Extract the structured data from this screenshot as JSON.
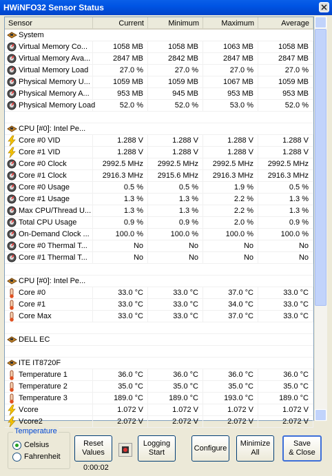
{
  "window": {
    "title": "HWiNFO32 Sensor Status"
  },
  "table": {
    "columns": [
      "Sensor",
      "Current",
      "Minimum",
      "Maximum",
      "Average"
    ],
    "groups": [
      {
        "title": "System",
        "rows": [
          [
            "Virtual Memory Co...",
            "1058 MB",
            "1058 MB",
            "1063 MB",
            "1058 MB"
          ],
          [
            "Virtual Memory Ava...",
            "2847 MB",
            "2842 MB",
            "2847 MB",
            "2847 MB"
          ],
          [
            "Virtual Memory Load",
            "27.0 %",
            "27.0 %",
            "27.0 %",
            "27.0 %"
          ],
          [
            "Physical Memory U...",
            "1059 MB",
            "1059 MB",
            "1067 MB",
            "1059 MB"
          ],
          [
            "Physical Memory A...",
            "953 MB",
            "945 MB",
            "953 MB",
            "953 MB"
          ],
          [
            "Physical Memory Load",
            "52.0 %",
            "52.0 %",
            "53.0 %",
            "52.0 %"
          ]
        ]
      },
      {
        "title": "CPU [#0]: Intel Pe...",
        "rows": [
          [
            "Core #0 VID",
            "1.288 V",
            "1.288 V",
            "1.288 V",
            "1.288 V"
          ],
          [
            "Core #1 VID",
            "1.288 V",
            "1.288 V",
            "1.288 V",
            "1.288 V"
          ],
          [
            "Core #0 Clock",
            "2992.5 MHz",
            "2992.5 MHz",
            "2992.5 MHz",
            "2992.5 MHz"
          ],
          [
            "Core #1 Clock",
            "2916.3 MHz",
            "2915.6 MHz",
            "2916.3 MHz",
            "2916.3 MHz"
          ],
          [
            "Core #0 Usage",
            "0.5 %",
            "0.5 %",
            "1.9 %",
            "0.5 %"
          ],
          [
            "Core #1 Usage",
            "1.3 %",
            "1.3 %",
            "2.2 %",
            "1.3 %"
          ],
          [
            "Max CPU/Thread U...",
            "1.3 %",
            "1.3 %",
            "2.2 %",
            "1.3 %"
          ],
          [
            "Total CPU Usage",
            "0.9 %",
            "0.9 %",
            "2.0 %",
            "0.9 %"
          ],
          [
            "On-Demand Clock ...",
            "100.0 %",
            "100.0 %",
            "100.0 %",
            "100.0 %"
          ],
          [
            "Core #0 Thermal T...",
            "No",
            "No",
            "No",
            "No"
          ],
          [
            "Core #1 Thermal T...",
            "No",
            "No",
            "No",
            "No"
          ]
        ]
      },
      {
        "title": "CPU [#0]: Intel Pe...",
        "rows": [
          [
            "Core #0",
            "33.0 °C",
            "33.0 °C",
            "37.0 °C",
            "33.0 °C"
          ],
          [
            "Core #1",
            "33.0 °C",
            "33.0 °C",
            "34.0 °C",
            "33.0 °C"
          ],
          [
            "Core Max",
            "33.0 °C",
            "33.0 °C",
            "37.0 °C",
            "33.0 °C"
          ]
        ]
      },
      {
        "title": "DELL EC",
        "rows": []
      },
      {
        "title": "ITE IT8720F",
        "rows": [
          [
            "Temperature 1",
            "36.0 °C",
            "36.0 °C",
            "36.0 °C",
            "36.0 °C"
          ],
          [
            "Temperature 2",
            "35.0 °C",
            "35.0 °C",
            "35.0 °C",
            "35.0 °C"
          ],
          [
            "Temperature 3",
            "189.0 °C",
            "189.0 °C",
            "193.0 °C",
            "189.0 °C"
          ],
          [
            "Vcore",
            "1.072 V",
            "1.072 V",
            "1.072 V",
            "1.072 V"
          ],
          [
            "Vcore2",
            "2.072 V",
            "2.072 V",
            "2.072 V",
            "2.072 V"
          ]
        ]
      }
    ]
  },
  "temperature": {
    "title": "Temperature",
    "options": [
      "Celsius",
      "Fahrenheit"
    ],
    "selected": 0
  },
  "buttons": [
    "Reset\nValues",
    "Logging\nStart",
    "Configure",
    "Minimize\nAll",
    "Save\n& Close"
  ],
  "timer": "0:00:02"
}
